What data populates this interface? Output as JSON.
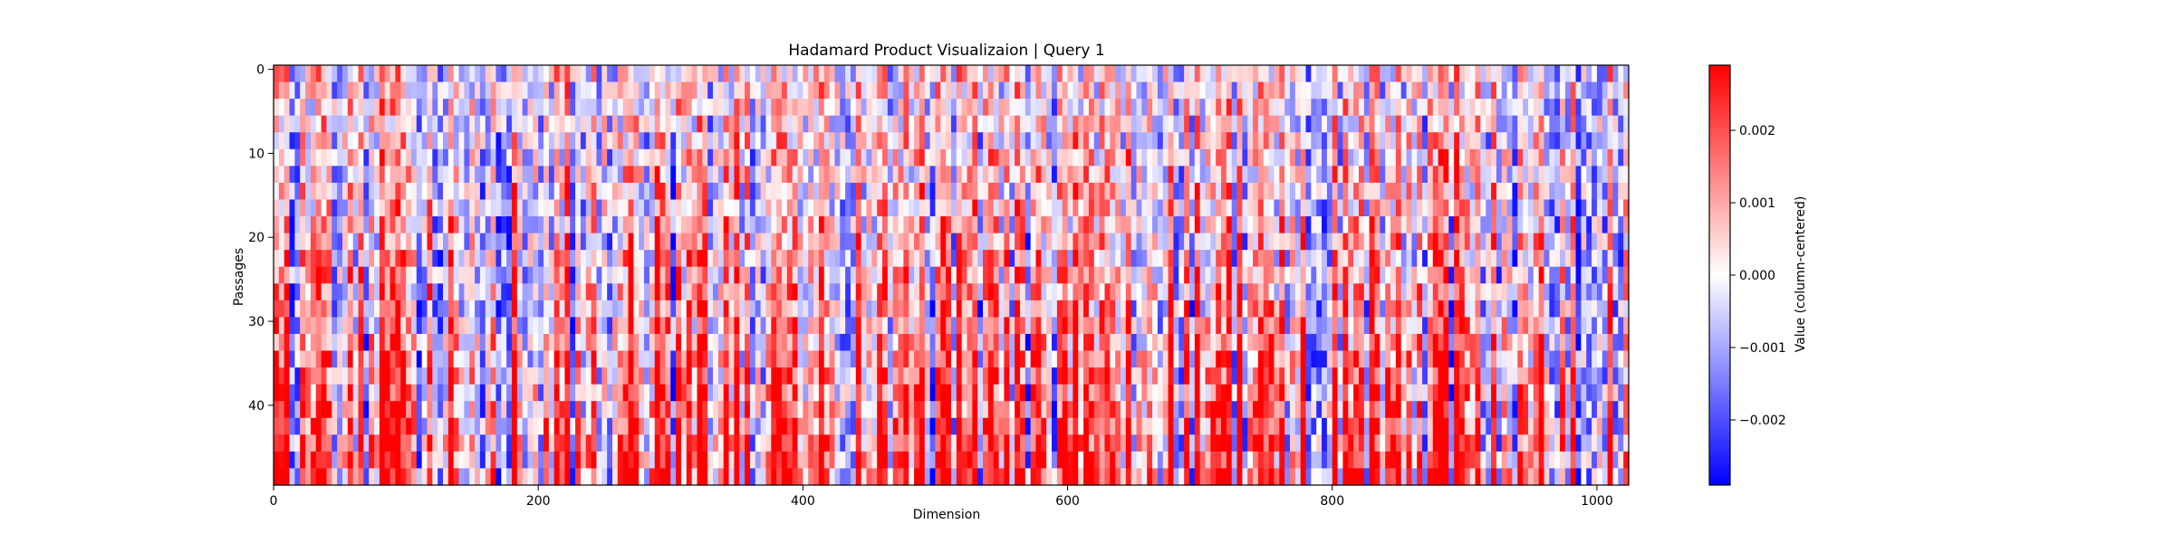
{
  "chart_data": {
    "type": "heatmap",
    "title": "Hadamard Product Visualizaion | Query 1",
    "xlabel": "Dimension",
    "ylabel": "Passages",
    "x_range": [
      0,
      1024
    ],
    "y_range": [
      0,
      50
    ],
    "x_ticks": [
      0,
      200,
      400,
      600,
      800,
      1000
    ],
    "y_ticks": [
      0,
      10,
      20,
      30,
      40
    ],
    "colormap": [
      "#0000ff",
      "#ffffff",
      "#ff0000"
    ],
    "colorbar": {
      "label": "Value (column-centered)",
      "range": [
        -0.0029,
        0.0029
      ],
      "ticks": [
        -0.002,
        -0.001,
        0.0,
        0.001,
        0.002
      ],
      "tick_labels": [
        "−0.002",
        "−0.001",
        "0.000",
        "0.001",
        "0.002"
      ]
    },
    "grid": false,
    "value_summary": "Dense noise-like pattern of positive (red) and negative (blue) column-centered values across 1024 dimensions and 50 passages, with stronger red intensity near the bottom passages"
  }
}
